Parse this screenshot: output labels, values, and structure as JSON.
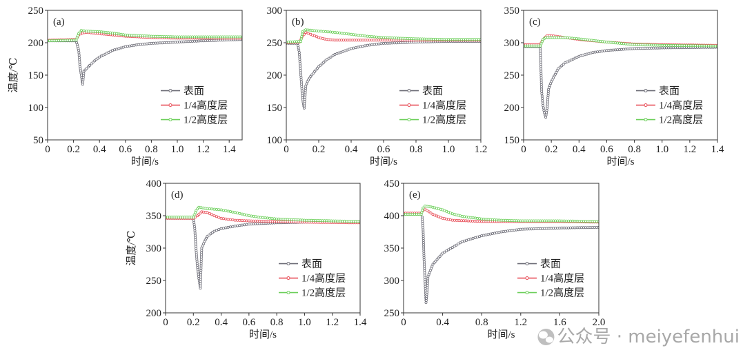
{
  "colors": {
    "surface": "#6e6e78",
    "quarter": "#e8505a",
    "half": "#6ccf5a"
  },
  "watermark": {
    "icon": "wechat-icon",
    "text": "公众号 · meiyefenhui"
  },
  "chart_data": [
    {
      "type": "line",
      "panel": "(a)",
      "xlabel": "时间/s",
      "ylabel": "温度/℃",
      "xlim": [
        0,
        1.5
      ],
      "ylim": [
        50,
        250
      ],
      "xticks": [
        0,
        0.2,
        0.4,
        0.6,
        0.8,
        1.0,
        1.2,
        1.4
      ],
      "yticks": [
        50,
        100,
        150,
        200,
        250
      ],
      "legend": "lower-right",
      "series": [
        {
          "name": "表面",
          "x": [
            0,
            0.22,
            0.24,
            0.25,
            0.26,
            0.27,
            0.28,
            0.3,
            0.35,
            0.4,
            0.5,
            0.6,
            0.7,
            0.8,
            1.0,
            1.2,
            1.5
          ],
          "y": [
            203,
            203,
            188,
            163,
            150,
            136,
            156,
            160,
            170,
            178,
            188,
            194,
            197,
            199,
            201,
            203,
            205
          ]
        },
        {
          "name": "1/4高度层",
          "x": [
            0,
            0.22,
            0.24,
            0.27,
            0.3,
            0.4,
            0.5,
            0.6,
            0.8,
            1.0,
            1.2,
            1.5
          ],
          "y": [
            204,
            205,
            212,
            215,
            216,
            214,
            212,
            210,
            208,
            207,
            207,
            207
          ]
        },
        {
          "name": "1/2高度层",
          "x": [
            0,
            0.22,
            0.24,
            0.26,
            0.3,
            0.4,
            0.5,
            0.6,
            0.7,
            0.8,
            1.0,
            1.2,
            1.5
          ],
          "y": [
            203,
            204,
            214,
            219,
            218,
            217,
            215,
            212,
            211,
            210,
            209,
            209,
            209
          ]
        }
      ]
    },
    {
      "type": "line",
      "panel": "(b)",
      "xlabel": "时间/s",
      "ylabel": "",
      "xlim": [
        0,
        1.2
      ],
      "ylim": [
        100,
        300
      ],
      "xticks": [
        0,
        0.2,
        0.4,
        0.6,
        0.8,
        1.0,
        1.2
      ],
      "yticks": [
        100,
        150,
        200,
        250,
        300
      ],
      "legend": "lower-right",
      "series": [
        {
          "name": "表面",
          "x": [
            0,
            0.07,
            0.08,
            0.09,
            0.1,
            0.11,
            0.12,
            0.13,
            0.15,
            0.2,
            0.25,
            0.3,
            0.4,
            0.5,
            0.6,
            0.8,
            1.0,
            1.2
          ],
          "y": [
            249,
            249,
            235,
            200,
            165,
            149,
            183,
            190,
            198,
            213,
            224,
            232,
            241,
            246,
            249,
            251,
            252,
            252
          ]
        },
        {
          "name": "1/4高度层",
          "x": [
            0,
            0.08,
            0.1,
            0.12,
            0.15,
            0.2,
            0.25,
            0.3,
            0.5,
            0.8,
            1.0,
            1.2
          ],
          "y": [
            250,
            251,
            260,
            266,
            263,
            258,
            255,
            254,
            254,
            254,
            254,
            254
          ]
        },
        {
          "name": "1/2高度层",
          "x": [
            0,
            0.09,
            0.1,
            0.12,
            0.2,
            0.3,
            0.4,
            0.5,
            0.6,
            0.8,
            1.0,
            1.2
          ],
          "y": [
            251,
            252,
            267,
            270,
            268,
            266,
            263,
            260,
            258,
            256,
            255,
            255
          ]
        }
      ]
    },
    {
      "type": "line",
      "panel": "(c)",
      "xlabel": "时间/s",
      "ylabel": "",
      "xlim": [
        0,
        1.4
      ],
      "ylim": [
        150,
        350
      ],
      "xticks": [
        0,
        0.2,
        0.4,
        0.6,
        0.8,
        1.0,
        1.2,
        1.4
      ],
      "yticks": [
        150,
        200,
        250,
        300,
        350
      ],
      "legend": "lower-right",
      "series": [
        {
          "name": "表面",
          "x": [
            0,
            0.12,
            0.13,
            0.14,
            0.15,
            0.16,
            0.17,
            0.18,
            0.2,
            0.25,
            0.3,
            0.4,
            0.5,
            0.6,
            0.8,
            1.0,
            1.4
          ],
          "y": [
            294,
            294,
            225,
            203,
            192,
            185,
            199,
            228,
            240,
            260,
            269,
            279,
            285,
            288,
            291,
            292,
            293
          ]
        },
        {
          "name": "1/4高度层",
          "x": [
            0,
            0.12,
            0.14,
            0.17,
            0.2,
            0.3,
            0.4,
            0.6,
            0.8,
            1.0,
            1.4
          ],
          "y": [
            297,
            297,
            305,
            311,
            311,
            308,
            305,
            301,
            298,
            297,
            296
          ]
        },
        {
          "name": "1/2高度层",
          "x": [
            0,
            0.12,
            0.14,
            0.16,
            0.3,
            0.4,
            0.6,
            0.8,
            1.0,
            1.4
          ],
          "y": [
            295,
            295,
            305,
            308,
            308,
            306,
            301,
            297,
            296,
            295
          ]
        }
      ]
    },
    {
      "type": "line",
      "panel": "(d)",
      "xlabel": "时间/s",
      "ylabel": "温度/℃",
      "xlim": [
        0,
        1.4
      ],
      "ylim": [
        200,
        400
      ],
      "xticks": [
        0,
        0.2,
        0.4,
        0.6,
        0.8,
        1.0,
        1.2,
        1.4
      ],
      "yticks": [
        200,
        250,
        300,
        350,
        400
      ],
      "legend": "lower-right",
      "series": [
        {
          "name": "表面",
          "x": [
            0,
            0.2,
            0.21,
            0.22,
            0.23,
            0.24,
            0.25,
            0.26,
            0.28,
            0.3,
            0.35,
            0.4,
            0.5,
            0.6,
            0.8,
            1.0,
            1.4
          ],
          "y": [
            346,
            346,
            330,
            296,
            270,
            253,
            238,
            300,
            310,
            318,
            326,
            330,
            334,
            337,
            339,
            340,
            341
          ]
        },
        {
          "name": "1/4高度层",
          "x": [
            0,
            0.2,
            0.23,
            0.26,
            0.3,
            0.35,
            0.4,
            0.5,
            0.6,
            0.8,
            1.0,
            1.4
          ],
          "y": [
            346,
            346,
            350,
            356,
            355,
            350,
            346,
            343,
            342,
            341,
            340,
            339
          ]
        },
        {
          "name": "1/2高度层",
          "x": [
            0,
            0.2,
            0.22,
            0.24,
            0.3,
            0.4,
            0.5,
            0.6,
            0.7,
            0.8,
            1.0,
            1.4
          ],
          "y": [
            348,
            348,
            358,
            363,
            361,
            359,
            355,
            350,
            347,
            345,
            343,
            341
          ]
        }
      ]
    },
    {
      "type": "line",
      "panel": "(e)",
      "xlabel": "时间/s",
      "ylabel": "",
      "xlim": [
        0,
        2.0
      ],
      "ylim": [
        250,
        450
      ],
      "xticks": [
        0,
        0.4,
        0.8,
        1.2,
        1.6,
        2.0
      ],
      "yticks": [
        250,
        300,
        350,
        400,
        450
      ],
      "legend": "lower-right",
      "series": [
        {
          "name": "表面",
          "x": [
            0,
            0.18,
            0.19,
            0.2,
            0.21,
            0.22,
            0.23,
            0.24,
            0.25,
            0.3,
            0.4,
            0.6,
            0.8,
            1.0,
            1.2,
            1.6,
            2.0
          ],
          "y": [
            402,
            402,
            398,
            378,
            332,
            298,
            266,
            282,
            306,
            325,
            342,
            360,
            369,
            375,
            379,
            381,
            382
          ]
        },
        {
          "name": "1/4高度层",
          "x": [
            0,
            0.18,
            0.2,
            0.22,
            0.3,
            0.4,
            0.5,
            0.8,
            1.2,
            1.6,
            2.0
          ],
          "y": [
            404,
            404,
            408,
            410,
            402,
            396,
            393,
            391,
            391,
            391,
            390
          ]
        },
        {
          "name": "1/2高度层",
          "x": [
            0,
            0.18,
            0.2,
            0.22,
            0.3,
            0.4,
            0.5,
            0.6,
            0.8,
            1.0,
            1.2,
            1.6,
            2.0
          ],
          "y": [
            402,
            402,
            412,
            415,
            413,
            409,
            403,
            399,
            395,
            393,
            392,
            392,
            391
          ]
        }
      ]
    }
  ]
}
